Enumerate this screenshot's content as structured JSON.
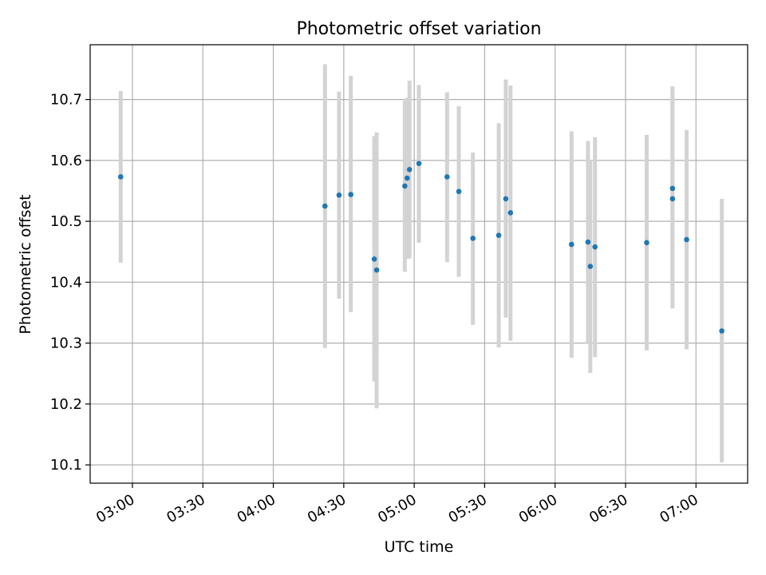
{
  "chart_data": {
    "type": "scatter",
    "title": "Photometric offset variation",
    "xlabel": "UTC time",
    "ylabel": "Photometric offset",
    "x_axis_kind": "time",
    "xlim": [
      "02:42",
      "07:22"
    ],
    "ylim": [
      10.07,
      10.79
    ],
    "x_ticks": [
      "03:00",
      "03:30",
      "04:00",
      "04:30",
      "05:00",
      "05:30",
      "06:00",
      "06:30",
      "07:00"
    ],
    "y_ticks": [
      10.1,
      10.2,
      10.3,
      10.4,
      10.5,
      10.6,
      10.7
    ],
    "y_tick_labels": [
      "10.1",
      "10.2",
      "10.3",
      "10.4",
      "10.5",
      "10.6",
      "10.7"
    ],
    "grid": true,
    "colors": {
      "points": "#1f77b4",
      "error_bars": "#d3d3d3",
      "grid": "#b0b0b0"
    },
    "points": [
      {
        "time": "02:55",
        "y": 10.573,
        "err_low": 10.432,
        "err_high": 10.714
      },
      {
        "time": "04:22",
        "y": 10.525,
        "err_low": 10.292,
        "err_high": 10.758
      },
      {
        "time": "04:28",
        "y": 10.543,
        "err_low": 10.373,
        "err_high": 10.713
      },
      {
        "time": "04:33",
        "y": 10.544,
        "err_low": 10.351,
        "err_high": 10.739
      },
      {
        "time": "04:43",
        "y": 10.438,
        "err_low": 10.237,
        "err_high": 10.64
      },
      {
        "time": "04:44",
        "y": 10.42,
        "err_low": 10.193,
        "err_high": 10.646
      },
      {
        "time": "04:56",
        "y": 10.558,
        "err_low": 10.417,
        "err_high": 10.698
      },
      {
        "time": "04:57",
        "y": 10.571,
        "err_low": 10.438,
        "err_high": 10.703
      },
      {
        "time": "04:58",
        "y": 10.585,
        "err_low": 10.439,
        "err_high": 10.731
      },
      {
        "time": "05:02",
        "y": 10.595,
        "err_low": 10.465,
        "err_high": 10.724
      },
      {
        "time": "05:14",
        "y": 10.573,
        "err_low": 10.433,
        "err_high": 10.712
      },
      {
        "time": "05:19",
        "y": 10.549,
        "err_low": 10.409,
        "err_high": 10.689
      },
      {
        "time": "05:25",
        "y": 10.472,
        "err_low": 10.33,
        "err_high": 10.613
      },
      {
        "time": "05:36",
        "y": 10.477,
        "err_low": 10.293,
        "err_high": 10.661
      },
      {
        "time": "05:39",
        "y": 10.537,
        "err_low": 10.342,
        "err_high": 10.733
      },
      {
        "time": "05:41",
        "y": 10.514,
        "err_low": 10.304,
        "err_high": 10.723
      },
      {
        "time": "06:07",
        "y": 10.462,
        "err_low": 10.276,
        "err_high": 10.648
      },
      {
        "time": "06:14",
        "y": 10.466,
        "err_low": 10.3,
        "err_high": 10.632
      },
      {
        "time": "06:15",
        "y": 10.426,
        "err_low": 10.251,
        "err_high": 10.601
      },
      {
        "time": "06:17",
        "y": 10.458,
        "err_low": 10.277,
        "err_high": 10.638
      },
      {
        "time": "06:39",
        "y": 10.465,
        "err_low": 10.288,
        "err_high": 10.642
      },
      {
        "time": "06:50",
        "y": 10.554,
        "err_low": 10.387,
        "err_high": 10.722
      },
      {
        "time": "06:50",
        "y": 10.537,
        "err_low": 10.357,
        "err_high": 10.717
      },
      {
        "time": "06:56",
        "y": 10.47,
        "err_low": 10.29,
        "err_high": 10.65
      },
      {
        "time": "07:11",
        "y": 10.32,
        "err_low": 10.104,
        "err_high": 10.537
      }
    ]
  }
}
